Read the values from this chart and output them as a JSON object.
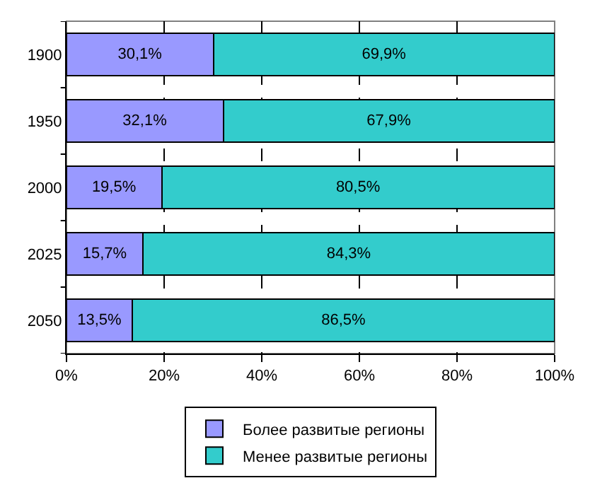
{
  "chart_data": {
    "type": "bar",
    "orientation": "horizontal",
    "stacked": true,
    "categories": [
      "1900",
      "1950",
      "2000",
      "2025",
      "2050"
    ],
    "series": [
      {
        "name": "Более развитые регионы",
        "color": "#9999ff",
        "values": [
          30.1,
          32.1,
          19.5,
          15.7,
          13.5
        ],
        "value_labels": [
          "30,1%",
          "32,1%",
          "19,5%",
          "15,7%",
          "13,5%"
        ]
      },
      {
        "name": "Менее развитые регионы",
        "color": "#33cccc",
        "values": [
          69.9,
          67.9,
          80.5,
          84.3,
          86.5
        ],
        "value_labels": [
          "69,9%",
          "67,9%",
          "80,5%",
          "84,3%",
          "86,5%"
        ]
      }
    ],
    "xlim": [
      0,
      100
    ],
    "xticks": [
      {
        "value": 0,
        "label": "0%"
      },
      {
        "value": 20,
        "label": "20%"
      },
      {
        "value": 40,
        "label": "40%"
      },
      {
        "value": 60,
        "label": "60%"
      },
      {
        "value": 80,
        "label": "80%"
      },
      {
        "value": 100,
        "label": "100%"
      }
    ],
    "grid": "x",
    "legend": "bottom"
  }
}
